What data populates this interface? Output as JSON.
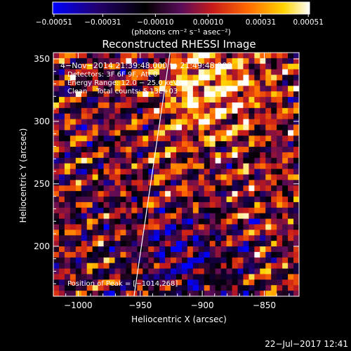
{
  "chart_data": {
    "type": "heatmap",
    "title": "Reconstructed RHESSI Image",
    "xlabel": "Heliocentric X (arcsec)",
    "ylabel": "Heliocentric Y (arcsec)",
    "xlim": [
      -1020,
      -822
    ],
    "ylim": [
      160,
      355
    ],
    "xticks": [
      -1000,
      -950,
      -900,
      -850
    ],
    "xtick_labels": [
      "−1000",
      "−950",
      "−900",
      "−850"
    ],
    "yticks": [
      200,
      250,
      300,
      350
    ],
    "ytick_labels": [
      "200",
      "250",
      "300",
      "350"
    ],
    "colorbar": {
      "tick_labels": [
        "−0.00051",
        "−0.00031",
        "−0.00010",
        "0.00010",
        "0.00031",
        "0.00051"
      ],
      "range": [
        -0.00051,
        0.00051
      ],
      "unit_label": "(photons cm⁻² s⁻¹ asec⁻²)",
      "colors": [
        "#0000ff",
        "#22006a",
        "#000000",
        "#5a0c5a",
        "#c61a1a",
        "#ff6a00",
        "#ffd400",
        "#ffffff"
      ]
    },
    "annotations": [
      "4−Nov−2014 21:39:48.000 to 21:49:48.000",
      "Detectors: 3F 6F 9F, Att 0",
      "Energy Range: 12.0 − 25.0 keV",
      "Clean    Total counts: 5.13E+03"
    ],
    "peak_label": "Position of Peak = [−1014,268]",
    "limb_line": [
      [
        -955,
        160
      ],
      [
        -926,
        355
      ]
    ]
  },
  "footer": {
    "timestamp": "22−Jul−2017 12:41"
  }
}
